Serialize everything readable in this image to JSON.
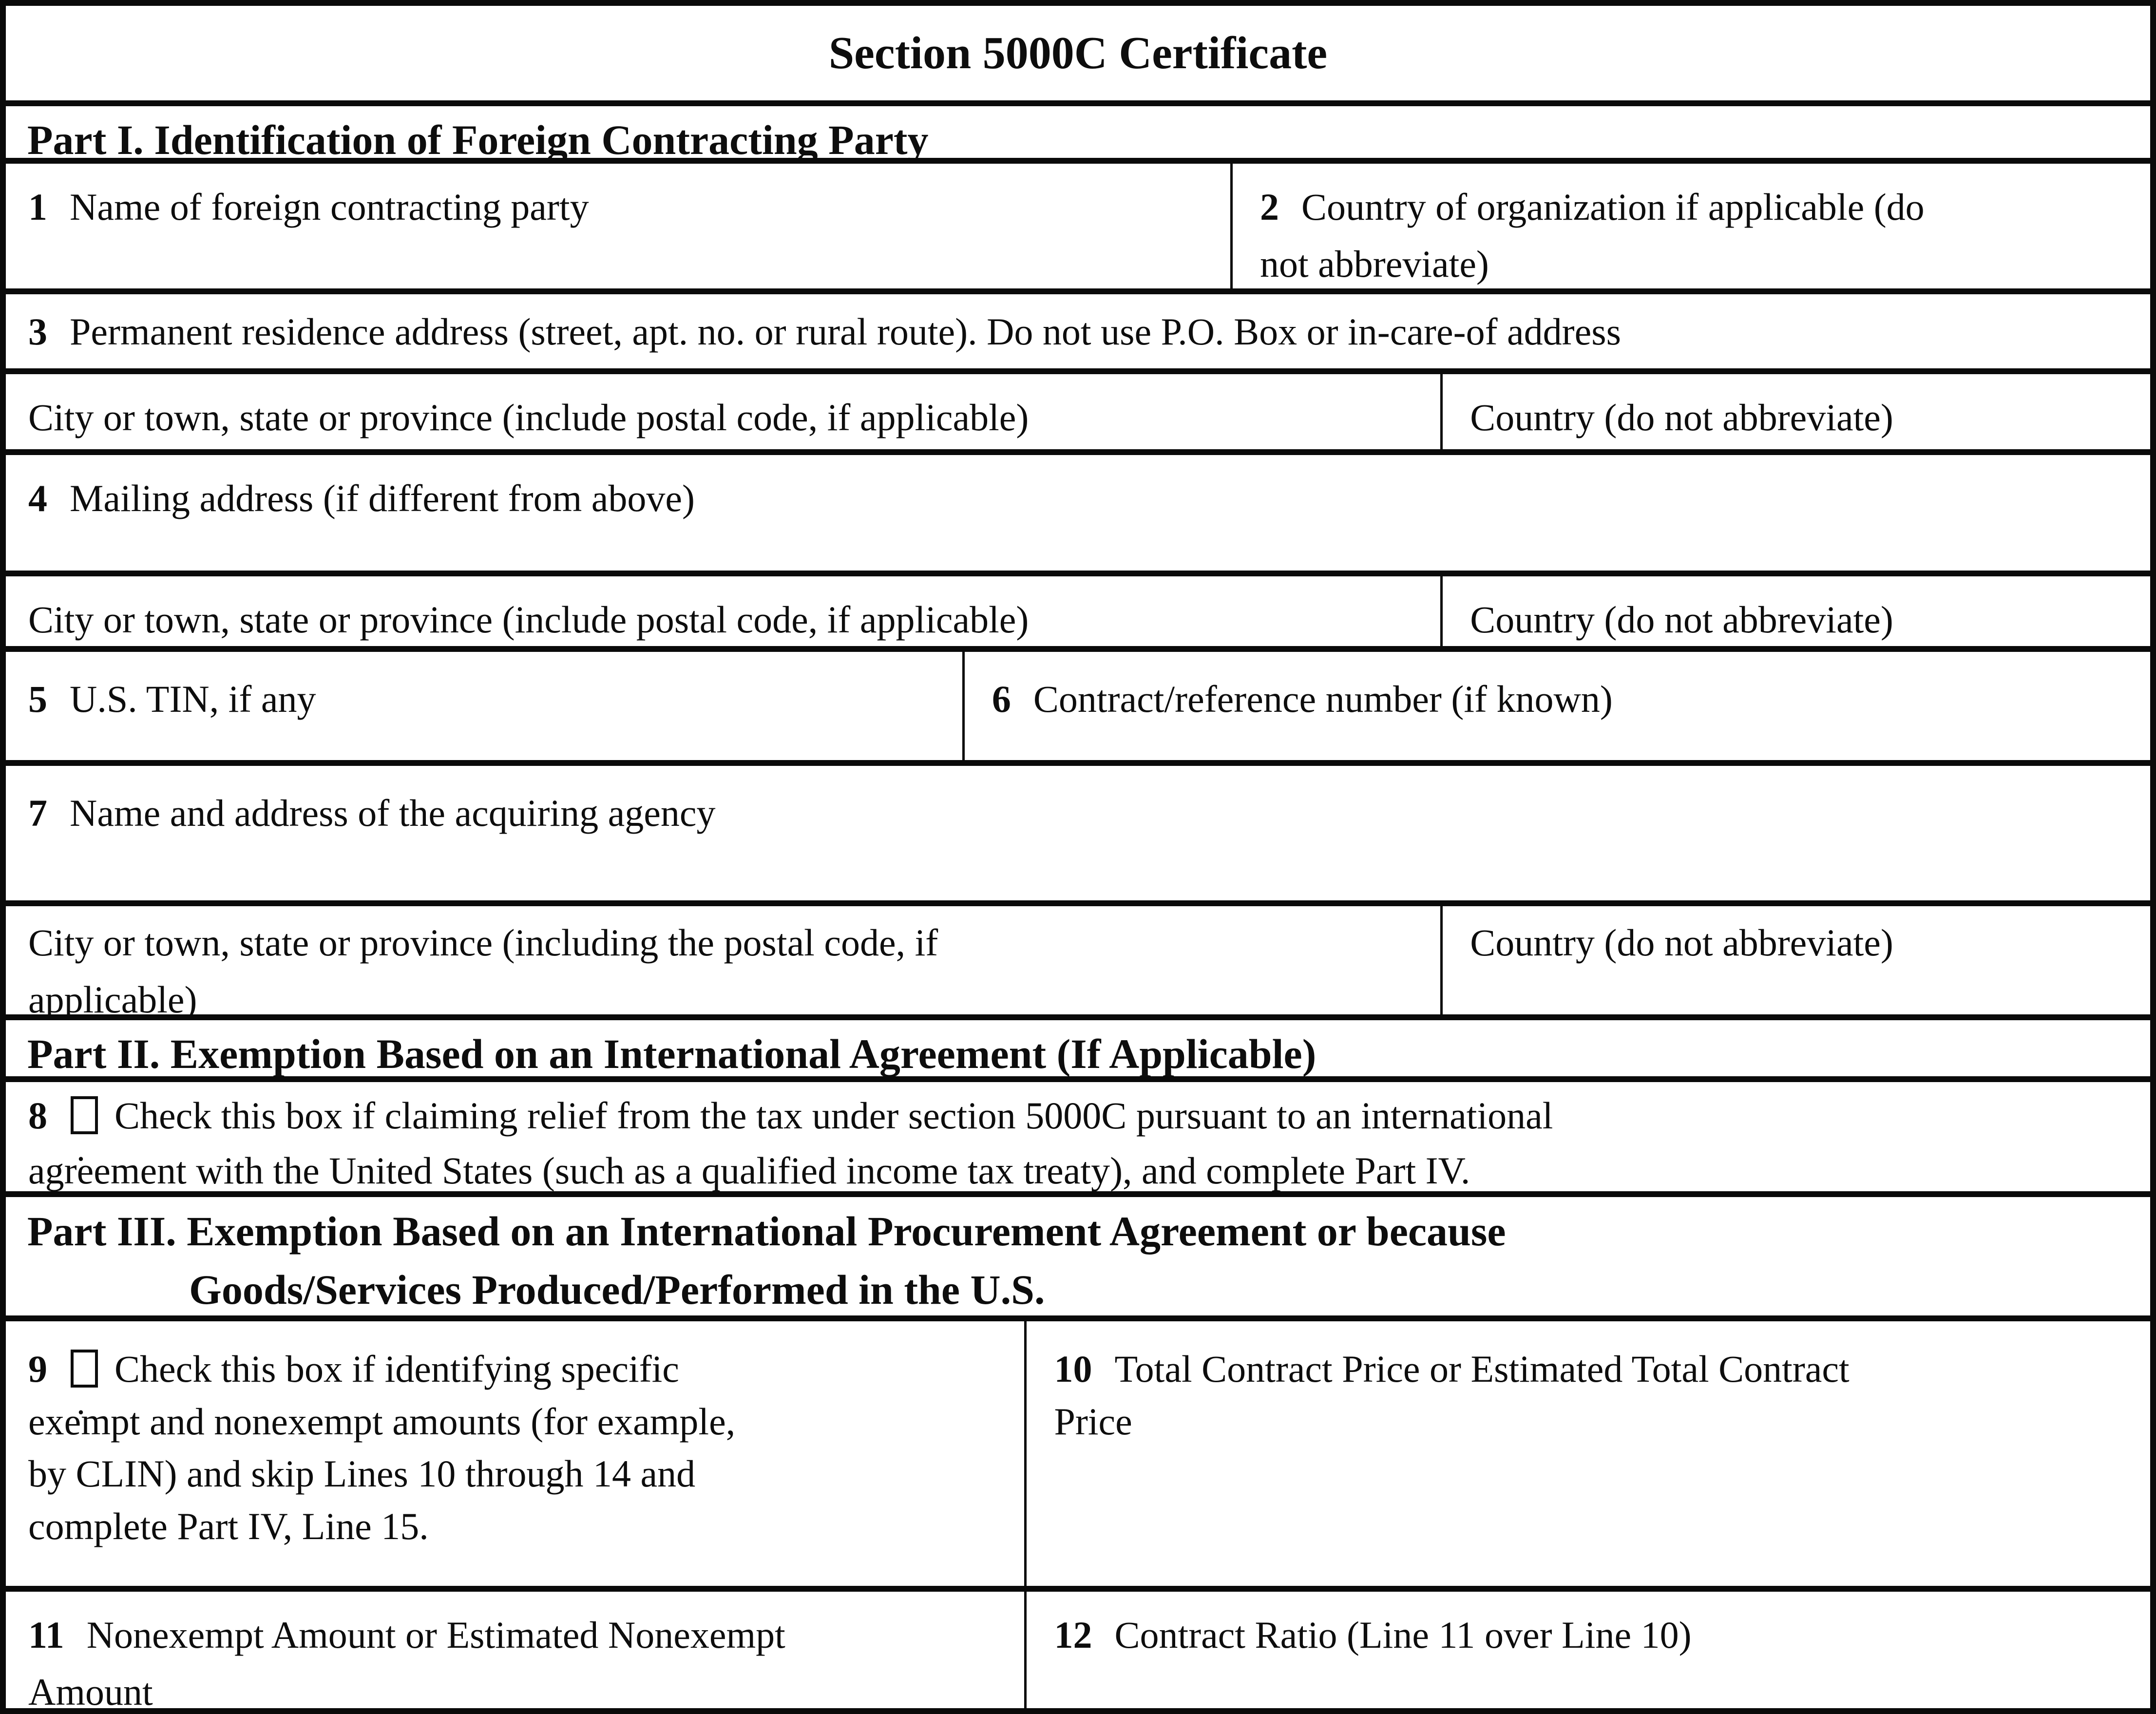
{
  "title": "Section 5000C Certificate",
  "part1": {
    "header": "Part I. Identification of Foreign Contracting Party",
    "line1": {
      "num": "1",
      "label": "Name of foreign contracting party"
    },
    "line2": {
      "num": "2",
      "label": "Country of organization if applicable (do\nnot abbreviate)"
    },
    "line3": {
      "num": "3",
      "label": "Permanent residence address (street, apt. no. or rural route). Do not use P.O. Box or in-care-of address"
    },
    "line3_city": "City or town, state or province (include postal code, if applicable)",
    "line3_country": "Country (do not abbreviate)",
    "line4": {
      "num": "4",
      "label": "Mailing address (if different from above)"
    },
    "line4_city": "City or town, state or province (include postal code, if applicable)",
    "line4_country": "Country (do not abbreviate)",
    "line5": {
      "num": "5",
      "label": "U.S. TIN, if any"
    },
    "line6": {
      "num": "6",
      "label": "Contract/reference number (if known)"
    },
    "line7": {
      "num": "7",
      "label": "Name and address of the acquiring agency"
    },
    "line7_city": "City or town, state or province (including the postal code, if\napplicable)",
    "line7_country": "Country (do not abbreviate)"
  },
  "part2": {
    "header": "Part II. Exemption Based on an International Agreement (If Applicable)",
    "line8": {
      "num": "8",
      "checkbox_checked": false,
      "checkbox_mark": ".",
      "label": "Check this box if claiming relief from the tax under section 5000C pursuant to an international\nagreement with the United States (such as a qualified income tax treaty), and complete Part IV."
    }
  },
  "part3": {
    "header_line1": "Part III. Exemption Based on an International Procurement Agreement or because",
    "header_line2": "Goods/Services Produced/Performed in the U.S.",
    "line9": {
      "num": "9",
      "checkbox_checked": false,
      "checkbox_mark": ".",
      "label": "Check this box if identifying specific\nexempt and nonexempt amounts (for example,\nby CLIN) and skip Lines 10 through 14 and\ncomplete Part IV, Line 15."
    },
    "line10": {
      "num": "10",
      "label": "Total Contract Price or Estimated Total Contract\nPrice"
    },
    "line11": {
      "num": "11",
      "label": "Nonexempt Amount or Estimated Nonexempt\nAmount"
    },
    "line12": {
      "num": "12",
      "label": "Contract Ratio (Line 11 over Line 10)"
    }
  }
}
